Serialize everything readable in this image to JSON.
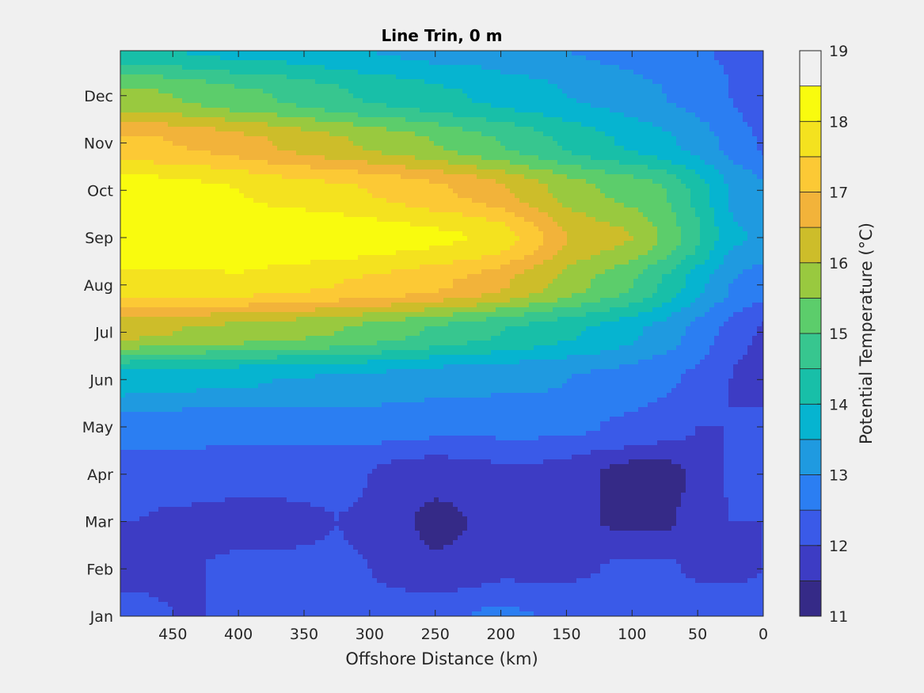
{
  "chart_data": {
    "type": "heatmap",
    "subtype": "filled-contour",
    "title": "Line Trin, 0 m",
    "xlabel": "Offshore Distance (km)",
    "ylabel": "",
    "x_axis_reversed": true,
    "xlim": [
      0,
      490
    ],
    "xticks": [
      450,
      400,
      350,
      300,
      250,
      200,
      150,
      100,
      50,
      0
    ],
    "ylim": [
      1,
      12.95
    ],
    "yticks": [
      {
        "value": 1,
        "label": "Jan"
      },
      {
        "value": 2,
        "label": "Feb"
      },
      {
        "value": 3,
        "label": "Mar"
      },
      {
        "value": 4,
        "label": "Apr"
      },
      {
        "value": 5,
        "label": "May"
      },
      {
        "value": 6,
        "label": "Jun"
      },
      {
        "value": 7,
        "label": "Jul"
      },
      {
        "value": 8,
        "label": "Aug"
      },
      {
        "value": 9,
        "label": "Sep"
      },
      {
        "value": 10,
        "label": "Oct"
      },
      {
        "value": 11,
        "label": "Nov"
      },
      {
        "value": 12,
        "label": "Dec"
      }
    ],
    "colorbar": {
      "label": "Potential Temperature (°C)",
      "range": [
        11,
        19
      ],
      "ticks": [
        11,
        12,
        13,
        14,
        15,
        16,
        17,
        18,
        19
      ],
      "level_step": 0.5,
      "colors": [
        "#352a87",
        "#3d3cc4",
        "#3a5ae8",
        "#2b7ef2",
        "#1f9ae0",
        "#06b4d0",
        "#18bfa8",
        "#37c68f",
        "#5ccd6b",
        "#99c93f",
        "#cdbd2a",
        "#f2b33a",
        "#fcc935",
        "#f4e21f",
        "#f9fb0e"
      ]
    },
    "x": [
      0,
      25,
      50,
      75,
      100,
      125,
      150,
      175,
      200,
      225,
      250,
      275,
      300,
      325,
      350,
      375,
      400,
      425,
      450,
      475,
      490
    ],
    "y_months": [
      "Jan",
      "Feb",
      "Mar",
      "Apr",
      "May",
      "Jun",
      "Jul",
      "Aug",
      "Sep",
      "Oct",
      "Nov",
      "Dec"
    ],
    "z": [
      [
        12.3,
        12.3,
        12.4,
        12.4,
        12.3,
        12.3,
        12.4,
        12.5,
        12.6,
        12.5,
        12.4,
        12.3,
        12.2,
        12.2,
        12.2,
        12.1,
        12.1,
        12.0,
        12.0,
        12.1,
        12.1
      ],
      [
        12.0,
        11.9,
        11.9,
        12.1,
        12.1,
        12.0,
        11.9,
        11.9,
        11.9,
        11.7,
        11.6,
        11.8,
        12.0,
        12.1,
        12.1,
        12.1,
        12.1,
        12.0,
        11.9,
        11.9,
        11.9
      ],
      [
        12.0,
        12.0,
        11.7,
        11.4,
        11.4,
        11.5,
        11.8,
        12.0,
        11.9,
        11.5,
        11.3,
        11.6,
        11.9,
        12.0,
        11.9,
        11.8,
        11.8,
        11.9,
        11.9,
        12.0,
        12.0
      ],
      [
        12.2,
        12.1,
        11.6,
        11.3,
        11.3,
        11.5,
        11.8,
        11.9,
        11.9,
        11.8,
        11.7,
        11.8,
        12.0,
        12.2,
        12.2,
        12.2,
        12.2,
        12.2,
        12.3,
        12.3,
        12.3
      ],
      [
        12.2,
        12.0,
        12.0,
        12.2,
        12.4,
        12.5,
        12.6,
        12.6,
        12.6,
        12.6,
        12.6,
        12.7,
        12.7,
        12.7,
        12.7,
        12.7,
        12.7,
        12.7,
        12.7,
        12.7,
        12.7
      ],
      [
        11.6,
        12.0,
        12.4,
        12.6,
        12.8,
        12.9,
        13.0,
        13.1,
        13.1,
        13.2,
        13.2,
        13.3,
        13.4,
        13.4,
        13.5,
        13.5,
        13.6,
        13.6,
        13.7,
        13.7,
        13.8
      ],
      [
        11.9,
        12.3,
        12.8,
        13.3,
        13.6,
        13.9,
        14.1,
        14.3,
        14.5,
        14.7,
        14.9,
        15.1,
        15.3,
        15.5,
        15.6,
        15.7,
        15.8,
        15.9,
        16.0,
        16.1,
        16.2
      ],
      [
        12.7,
        13.0,
        13.7,
        14.4,
        15.0,
        15.4,
        15.8,
        16.2,
        16.6,
        16.9,
        17.1,
        17.3,
        17.4,
        17.5,
        17.6,
        17.7,
        17.8,
        17.8,
        17.8,
        17.8,
        17.8
      ],
      [
        13.4,
        13.6,
        14.6,
        15.4,
        16.0,
        16.2,
        16.5,
        17.2,
        17.8,
        18.0,
        18.1,
        18.2,
        18.3,
        18.4,
        18.5,
        18.6,
        19.0,
        18.6,
        18.5,
        18.5,
        18.5
      ],
      [
        13.1,
        13.4,
        14.3,
        15.0,
        15.3,
        15.5,
        15.8,
        16.2,
        16.6,
        16.9,
        17.1,
        17.3,
        17.5,
        17.6,
        17.7,
        17.8,
        18.0,
        18.1,
        18.2,
        18.3,
        18.3
      ],
      [
        12.4,
        12.8,
        13.3,
        13.6,
        13.9,
        14.1,
        14.4,
        14.7,
        15.0,
        15.2,
        15.5,
        15.7,
        15.9,
        16.1,
        16.3,
        16.5,
        16.7,
        16.9,
        17.0,
        17.1,
        17.1
      ],
      [
        12.2,
        12.5,
        12.8,
        13.0,
        13.2,
        13.4,
        13.5,
        13.7,
        13.8,
        14.0,
        14.1,
        14.3,
        14.4,
        14.6,
        14.8,
        15.0,
        15.1,
        15.3,
        15.5,
        15.6,
        15.6
      ],
      [
        12.2,
        12.4,
        12.6,
        12.7,
        12.8,
        12.9,
        13.0,
        13.1,
        13.2,
        13.3,
        13.3,
        13.4,
        13.5,
        13.6,
        13.7,
        13.8,
        13.8,
        13.9,
        14.0,
        14.1,
        14.1
      ]
    ]
  }
}
